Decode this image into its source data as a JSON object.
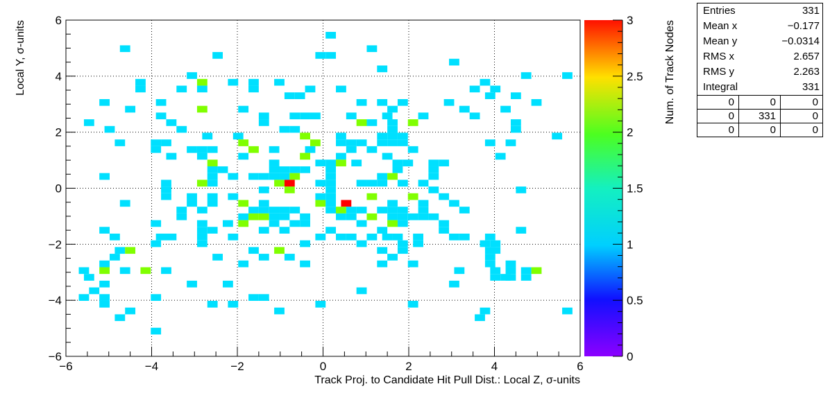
{
  "chart_data": {
    "type": "heatmap",
    "xlabel": "Track Proj. to Candidate Hit Pull Dist.: Local Z, σ-units",
    "ylabel": "Local Y, σ-units",
    "zlabel": "Num. of Track Nodes",
    "xlim": [
      -6,
      6
    ],
    "ylim": [
      -6,
      6
    ],
    "zlim": [
      0,
      3
    ],
    "x_ticks": [
      "−6",
      "−4",
      "−2",
      "0",
      "2",
      "4",
      "6"
    ],
    "y_ticks": [
      "−6",
      "−4",
      "−2",
      "0",
      "2",
      "4",
      "6"
    ],
    "z_ticks": [
      "0",
      "0.5",
      "1",
      "1.5",
      "2",
      "2.5",
      "3"
    ],
    "grid": true,
    "bin_width": 0.24,
    "cells": [
      [
        0.18,
        5.46,
        1
      ],
      [
        -4.62,
        4.98,
        1
      ],
      [
        0.18,
        4.74,
        1
      ],
      [
        1.14,
        4.98,
        1
      ],
      [
        -2.46,
        4.74,
        1
      ],
      [
        -0.06,
        4.74,
        1
      ],
      [
        3.06,
        4.5,
        1
      ],
      [
        1.38,
        4.26,
        1
      ],
      [
        -3.06,
        4.02,
        1
      ],
      [
        -2.82,
        3.78,
        2
      ],
      [
        -2.1,
        3.78,
        1
      ],
      [
        -1.62,
        3.78,
        1
      ],
      [
        -1.02,
        3.78,
        1
      ],
      [
        -4.26,
        3.78,
        1
      ],
      [
        -4.26,
        3.54,
        1
      ],
      [
        -3.3,
        3.54,
        1
      ],
      [
        -2.82,
        3.54,
        1
      ],
      [
        -1.62,
        3.54,
        1
      ],
      [
        -0.3,
        3.54,
        1
      ],
      [
        0.42,
        3.54,
        1
      ],
      [
        3.78,
        3.78,
        1
      ],
      [
        4.74,
        4.02,
        1
      ],
      [
        5.7,
        4.02,
        1
      ],
      [
        3.54,
        3.54,
        1
      ],
      [
        4.02,
        3.54,
        1
      ],
      [
        3.9,
        3.3,
        1
      ],
      [
        4.5,
        3.3,
        1
      ],
      [
        -0.78,
        3.3,
        1
      ],
      [
        -0.54,
        3.3,
        1
      ],
      [
        -5.1,
        3.06,
        1
      ],
      [
        -3.78,
        3.06,
        1
      ],
      [
        0.9,
        3.06,
        1
      ],
      [
        1.38,
        3.06,
        1
      ],
      [
        1.86,
        3.06,
        1
      ],
      [
        2.94,
        3.06,
        1
      ],
      [
        4.98,
        3.06,
        1
      ],
      [
        -4.5,
        2.82,
        1
      ],
      [
        -2.82,
        2.82,
        2
      ],
      [
        -1.86,
        2.82,
        1
      ],
      [
        1.62,
        2.82,
        1
      ],
      [
        3.3,
        2.82,
        1
      ],
      [
        4.26,
        2.82,
        1
      ],
      [
        -3.78,
        2.58,
        1
      ],
      [
        -1.38,
        2.58,
        1
      ],
      [
        -0.66,
        2.58,
        1
      ],
      [
        -0.42,
        2.58,
        1
      ],
      [
        -0.18,
        2.58,
        1
      ],
      [
        0.66,
        2.58,
        1
      ],
      [
        1.5,
        2.58,
        1
      ],
      [
        2.34,
        2.58,
        1
      ],
      [
        3.54,
        2.58,
        1
      ],
      [
        -5.46,
        2.34,
        1
      ],
      [
        -3.54,
        2.34,
        1
      ],
      [
        -1.38,
        2.34,
        1
      ],
      [
        0.9,
        2.34,
        2
      ],
      [
        1.14,
        2.34,
        1
      ],
      [
        1.62,
        2.34,
        1
      ],
      [
        2.1,
        2.34,
        2
      ],
      [
        4.5,
        2.34,
        1
      ],
      [
        -4.98,
        2.1,
        1
      ],
      [
        -3.3,
        2.1,
        1
      ],
      [
        -0.9,
        2.1,
        1
      ],
      [
        -0.66,
        2.1,
        1
      ],
      [
        1.62,
        2.1,
        1
      ],
      [
        4.5,
        2.1,
        1
      ],
      [
        -2.7,
        1.86,
        1
      ],
      [
        -1.98,
        1.86,
        1
      ],
      [
        -0.42,
        1.86,
        2
      ],
      [
        0.42,
        1.86,
        1
      ],
      [
        1.38,
        1.86,
        1
      ],
      [
        1.62,
        1.86,
        1
      ],
      [
        1.86,
        1.86,
        1
      ],
      [
        5.46,
        1.86,
        1
      ],
      [
        -4.74,
        1.62,
        1
      ],
      [
        -3.9,
        1.62,
        1
      ],
      [
        -3.66,
        1.62,
        1
      ],
      [
        -1.86,
        1.62,
        2
      ],
      [
        -0.18,
        1.62,
        2
      ],
      [
        0.42,
        1.62,
        1
      ],
      [
        0.66,
        1.62,
        1
      ],
      [
        0.9,
        1.62,
        1
      ],
      [
        1.38,
        1.62,
        1
      ],
      [
        1.62,
        1.62,
        1
      ],
      [
        1.86,
        1.62,
        1
      ],
      [
        3.9,
        1.62,
        1
      ],
      [
        4.38,
        1.62,
        1
      ],
      [
        -3.9,
        1.38,
        1
      ],
      [
        -3.06,
        1.38,
        1
      ],
      [
        -2.82,
        1.38,
        1
      ],
      [
        -2.58,
        1.38,
        1
      ],
      [
        -1.62,
        1.38,
        2
      ],
      [
        -1.14,
        1.38,
        1
      ],
      [
        -0.3,
        1.38,
        1
      ],
      [
        0.66,
        1.38,
        1
      ],
      [
        1.14,
        1.38,
        1
      ],
      [
        2.1,
        1.38,
        1
      ],
      [
        -3.54,
        1.14,
        1
      ],
      [
        -2.82,
        1.14,
        1
      ],
      [
        -1.86,
        1.14,
        1
      ],
      [
        -0.42,
        1.14,
        2
      ],
      [
        0.42,
        1.14,
        1
      ],
      [
        1.5,
        1.14,
        1
      ],
      [
        4.14,
        1.14,
        1
      ],
      [
        -2.58,
        0.9,
        2
      ],
      [
        -1.14,
        0.9,
        1
      ],
      [
        -0.06,
        0.9,
        1
      ],
      [
        0.18,
        0.9,
        1
      ],
      [
        0.42,
        0.9,
        2
      ],
      [
        0.78,
        0.9,
        1
      ],
      [
        1.74,
        0.9,
        1
      ],
      [
        1.98,
        0.9,
        1
      ],
      [
        2.58,
        0.9,
        1
      ],
      [
        2.82,
        0.9,
        1
      ],
      [
        -2.58,
        0.66,
        1
      ],
      [
        -2.34,
        0.66,
        1
      ],
      [
        -1.14,
        0.66,
        1
      ],
      [
        -0.9,
        0.66,
        1
      ],
      [
        -0.66,
        0.66,
        1
      ],
      [
        -0.42,
        0.66,
        1
      ],
      [
        0.18,
        0.66,
        1
      ],
      [
        1.74,
        0.66,
        1
      ],
      [
        2.58,
        0.66,
        1
      ],
      [
        -5.1,
        0.42,
        1
      ],
      [
        -2.58,
        0.42,
        1
      ],
      [
        -2.1,
        0.42,
        1
      ],
      [
        -1.62,
        0.42,
        1
      ],
      [
        -1.38,
        0.42,
        1
      ],
      [
        -1.14,
        0.42,
        1
      ],
      [
        -0.9,
        0.42,
        1
      ],
      [
        -0.66,
        0.42,
        2
      ],
      [
        0.18,
        0.42,
        1
      ],
      [
        1.38,
        0.42,
        1
      ],
      [
        1.62,
        0.42,
        2
      ],
      [
        2.58,
        0.42,
        1
      ],
      [
        -3.66,
        0.18,
        1
      ],
      [
        -2.82,
        0.18,
        2
      ],
      [
        -2.58,
        0.18,
        1
      ],
      [
        -1.02,
        0.18,
        2
      ],
      [
        -0.78,
        0.18,
        3
      ],
      [
        -0.06,
        0.18,
        1
      ],
      [
        0.18,
        0.18,
        1
      ],
      [
        0.9,
        0.18,
        1
      ],
      [
        1.14,
        0.18,
        1
      ],
      [
        1.38,
        0.18,
        1
      ],
      [
        1.86,
        0.18,
        1
      ],
      [
        2.34,
        0.18,
        1
      ],
      [
        -3.66,
        -0.06,
        1
      ],
      [
        -1.38,
        -0.06,
        1
      ],
      [
        -0.78,
        -0.06,
        2
      ],
      [
        0.18,
        -0.06,
        1
      ],
      [
        2.58,
        -0.06,
        1
      ],
      [
        4.62,
        -0.06,
        1
      ],
      [
        -3.66,
        -0.3,
        1
      ],
      [
        -3.06,
        -0.3,
        1
      ],
      [
        -2.58,
        -0.3,
        1
      ],
      [
        -2.1,
        -0.3,
        1
      ],
      [
        -0.06,
        -0.3,
        1
      ],
      [
        0.18,
        -0.3,
        1
      ],
      [
        1.14,
        -0.3,
        2
      ],
      [
        2.1,
        -0.3,
        2
      ],
      [
        2.82,
        -0.3,
        1
      ],
      [
        -4.62,
        -0.54,
        1
      ],
      [
        -3.06,
        -0.54,
        1
      ],
      [
        -2.58,
        -0.54,
        1
      ],
      [
        -1.86,
        -0.54,
        2
      ],
      [
        -1.38,
        -0.54,
        1
      ],
      [
        -0.06,
        -0.54,
        2
      ],
      [
        0.18,
        -0.54,
        1
      ],
      [
        0.54,
        -0.54,
        3
      ],
      [
        1.62,
        -0.54,
        1
      ],
      [
        2.34,
        -0.54,
        1
      ],
      [
        3.06,
        -0.54,
        1
      ],
      [
        -3.3,
        -0.78,
        1
      ],
      [
        -2.82,
        -0.78,
        1
      ],
      [
        -1.62,
        -0.78,
        1
      ],
      [
        -1.38,
        -0.78,
        1
      ],
      [
        -1.14,
        -0.78,
        1
      ],
      [
        -0.9,
        -0.78,
        1
      ],
      [
        -0.66,
        -0.78,
        1
      ],
      [
        0.18,
        -0.78,
        1
      ],
      [
        0.42,
        -0.78,
        2
      ],
      [
        0.66,
        -0.78,
        1
      ],
      [
        0.9,
        -0.78,
        1
      ],
      [
        1.38,
        -0.78,
        1
      ],
      [
        1.62,
        -0.78,
        1
      ],
      [
        1.86,
        -0.78,
        1
      ],
      [
        2.34,
        -0.78,
        1
      ],
      [
        3.3,
        -0.78,
        1
      ],
      [
        -3.3,
        -1.02,
        1
      ],
      [
        -1.86,
        -1.02,
        1
      ],
      [
        -1.62,
        -1.02,
        2
      ],
      [
        -1.38,
        -1.02,
        2
      ],
      [
        -1.14,
        -1.02,
        1
      ],
      [
        -0.9,
        -1.02,
        1
      ],
      [
        -0.42,
        -1.02,
        1
      ],
      [
        0.42,
        -1.02,
        1
      ],
      [
        0.66,
        -1.02,
        1
      ],
      [
        1.14,
        -1.02,
        2
      ],
      [
        1.62,
        -1.02,
        1
      ],
      [
        1.86,
        -1.02,
        1
      ],
      [
        2.1,
        -1.02,
        1
      ],
      [
        2.34,
        -1.02,
        1
      ],
      [
        2.58,
        -1.02,
        1
      ],
      [
        -3.9,
        -1.26,
        1
      ],
      [
        -2.82,
        -1.26,
        1
      ],
      [
        -2.22,
        -1.26,
        1
      ],
      [
        -1.86,
        -1.26,
        2
      ],
      [
        -1.14,
        -1.26,
        1
      ],
      [
        -0.66,
        -1.26,
        1
      ],
      [
        -0.42,
        -1.26,
        1
      ],
      [
        0.9,
        -1.26,
        1
      ],
      [
        1.62,
        -1.26,
        2
      ],
      [
        1.86,
        -1.26,
        1
      ],
      [
        2.82,
        -1.26,
        1
      ],
      [
        -5.1,
        -1.5,
        1
      ],
      [
        -2.82,
        -1.5,
        1
      ],
      [
        -2.58,
        -1.5,
        1
      ],
      [
        -1.38,
        -1.5,
        1
      ],
      [
        -0.9,
        -1.5,
        1
      ],
      [
        0.18,
        -1.5,
        1
      ],
      [
        1.38,
        -1.5,
        1
      ],
      [
        2.82,
        -1.5,
        1
      ],
      [
        4.62,
        -1.5,
        1
      ],
      [
        -4.86,
        -1.74,
        1
      ],
      [
        -3.78,
        -1.74,
        1
      ],
      [
        -3.54,
        -1.74,
        1
      ],
      [
        -2.82,
        -1.74,
        1
      ],
      [
        -2.1,
        -1.74,
        1
      ],
      [
        -0.06,
        -1.74,
        1
      ],
      [
        0.42,
        -1.74,
        1
      ],
      [
        0.66,
        -1.74,
        1
      ],
      [
        1.14,
        -1.74,
        1
      ],
      [
        1.5,
        -1.74,
        1
      ],
      [
        1.74,
        -1.74,
        1
      ],
      [
        2.22,
        -1.74,
        1
      ],
      [
        3.06,
        -1.74,
        1
      ],
      [
        3.3,
        -1.74,
        1
      ],
      [
        3.9,
        -1.74,
        1
      ],
      [
        -3.9,
        -1.98,
        1
      ],
      [
        -2.82,
        -1.98,
        1
      ],
      [
        -0.42,
        -1.98,
        1
      ],
      [
        0.9,
        -1.98,
        1
      ],
      [
        1.86,
        -1.98,
        1
      ],
      [
        2.22,
        -1.98,
        1
      ],
      [
        3.78,
        -1.98,
        1
      ],
      [
        4.02,
        -1.98,
        1
      ],
      [
        -4.74,
        -2.22,
        1
      ],
      [
        -4.5,
        -2.22,
        2
      ],
      [
        -1.62,
        -2.22,
        1
      ],
      [
        -1.02,
        -2.22,
        2
      ],
      [
        1.38,
        -2.22,
        1
      ],
      [
        1.86,
        -2.22,
        1
      ],
      [
        3.9,
        -2.22,
        1
      ],
      [
        4.02,
        -2.22,
        1
      ],
      [
        -4.86,
        -2.46,
        1
      ],
      [
        -2.46,
        -2.46,
        1
      ],
      [
        -1.38,
        -2.46,
        1
      ],
      [
        -0.78,
        -2.46,
        1
      ],
      [
        1.62,
        -2.46,
        1
      ],
      [
        3.9,
        -2.46,
        1
      ],
      [
        -5.1,
        -2.7,
        1
      ],
      [
        -1.86,
        -2.7,
        1
      ],
      [
        -0.42,
        -2.7,
        1
      ],
      [
        1.38,
        -2.7,
        1
      ],
      [
        2.1,
        -2.7,
        1
      ],
      [
        3.9,
        -2.7,
        1
      ],
      [
        4.38,
        -2.7,
        1
      ],
      [
        -5.58,
        -2.94,
        1
      ],
      [
        -5.1,
        -2.94,
        2
      ],
      [
        -4.62,
        -2.94,
        1
      ],
      [
        -4.14,
        -2.94,
        2
      ],
      [
        -3.66,
        -2.94,
        1
      ],
      [
        3.18,
        -2.94,
        1
      ],
      [
        4.02,
        -2.94,
        1
      ],
      [
        4.38,
        -2.94,
        1
      ],
      [
        4.74,
        -2.94,
        1
      ],
      [
        4.98,
        -2.94,
        2
      ],
      [
        -5.46,
        -3.18,
        1
      ],
      [
        4.02,
        -3.18,
        1
      ],
      [
        4.26,
        -3.18,
        1
      ],
      [
        4.38,
        -3.18,
        1
      ],
      [
        4.74,
        -3.18,
        1
      ],
      [
        -5.1,
        -3.42,
        1
      ],
      [
        -3.06,
        -3.42,
        1
      ],
      [
        -2.22,
        -3.42,
        1
      ],
      [
        3.06,
        -3.42,
        1
      ],
      [
        -5.34,
        -3.66,
        1
      ],
      [
        0.9,
        -3.66,
        1
      ],
      [
        -5.58,
        -3.9,
        1
      ],
      [
        -5.1,
        -3.9,
        1
      ],
      [
        -3.9,
        -3.9,
        1
      ],
      [
        -1.62,
        -3.9,
        1
      ],
      [
        -1.38,
        -3.9,
        1
      ],
      [
        -5.1,
        -4.14,
        1
      ],
      [
        -2.58,
        -4.14,
        1
      ],
      [
        -2.1,
        -4.14,
        1
      ],
      [
        -0.06,
        -4.14,
        1
      ],
      [
        2.1,
        -4.14,
        1
      ],
      [
        -4.5,
        -4.38,
        1
      ],
      [
        -1.02,
        -4.38,
        1
      ],
      [
        3.78,
        -4.38,
        1
      ],
      [
        5.7,
        -4.38,
        1
      ],
      [
        -4.74,
        -4.62,
        1
      ],
      [
        3.66,
        -4.62,
        1
      ],
      [
        -3.9,
        -5.1,
        1
      ]
    ]
  },
  "stats": {
    "rows": [
      {
        "label": "Entries",
        "value": "331"
      },
      {
        "label": "Mean x",
        "value": "−0.177"
      },
      {
        "label": "Mean y",
        "value": "−0.0314"
      },
      {
        "label": "RMS x",
        "value": "2.657"
      },
      {
        "label": "RMS y",
        "value": "2.263"
      },
      {
        "label": "Integral",
        "value": "331"
      }
    ],
    "grid": [
      [
        "0",
        "0",
        "0"
      ],
      [
        "0",
        "331",
        "0"
      ],
      [
        "0",
        "0",
        "0"
      ]
    ]
  }
}
